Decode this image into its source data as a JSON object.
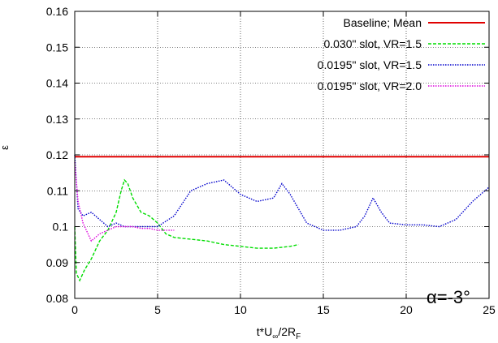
{
  "chart_data": {
    "type": "line",
    "title": "",
    "xlabel": "t*U",
    "xlabel_sub_inf": "∞",
    "xlabel_mid": "/2R",
    "xlabel_sub": "F",
    "ylabel": "ε",
    "xlim": [
      0,
      25
    ],
    "ylim": [
      0.08,
      0.16
    ],
    "xticks": [
      "0",
      "5",
      "10",
      "15",
      "20",
      "25"
    ],
    "xtick_values": [
      0,
      5,
      10,
      15,
      20,
      25
    ],
    "yticks": [
      "0.08",
      "0.09",
      "0.1",
      "0.11",
      "0.12",
      "0.13",
      "0.14",
      "0.15",
      "0.16"
    ],
    "ytick_values": [
      0.08,
      0.09,
      0.1,
      0.11,
      0.12,
      0.13,
      0.14,
      0.15,
      0.16
    ],
    "grid": true,
    "legend_position": "top-right",
    "annotation": "α=-3°",
    "series": [
      {
        "name": "Baseline; Mean",
        "color": "#e00000",
        "style": "solid",
        "x": [
          0,
          25
        ],
        "y": [
          0.1195,
          0.1195
        ]
      },
      {
        "name": "0.030\" slot, VR=1.5",
        "color": "#00dd00",
        "style": "dashed",
        "x": [
          0,
          0.1,
          0.3,
          0.6,
          1.0,
          1.5,
          2.0,
          2.5,
          2.8,
          3.0,
          3.2,
          3.5,
          4.0,
          4.5,
          5.0,
          5.5,
          6.0,
          7.0,
          8.0,
          9.0,
          10.0,
          11.0,
          12.0,
          13.0,
          13.5
        ],
        "y": [
          0.1,
          0.087,
          0.085,
          0.088,
          0.091,
          0.096,
          0.099,
          0.104,
          0.11,
          0.113,
          0.112,
          0.108,
          0.104,
          0.103,
          0.101,
          0.098,
          0.097,
          0.0965,
          0.096,
          0.095,
          0.0945,
          0.094,
          0.094,
          0.0945,
          0.095
        ]
      },
      {
        "name": "0.0195\" slot, VR=1.5",
        "color": "#0000cc",
        "style": "dotted",
        "x": [
          0,
          0.2,
          0.5,
          1.0,
          1.5,
          2.0,
          2.5,
          3.0,
          3.5,
          4.0,
          5.0,
          6.0,
          7.0,
          8.0,
          9.0,
          10.0,
          11.0,
          12.0,
          12.5,
          13.0,
          14.0,
          15.0,
          16.0,
          17.0,
          17.5,
          18.0,
          18.5,
          19.0,
          20.0,
          21.0,
          22.0,
          23.0,
          24.0,
          25.0
        ],
        "y": [
          0.12,
          0.105,
          0.103,
          0.104,
          0.102,
          0.1,
          0.101,
          0.1,
          0.1,
          0.1,
          0.1,
          0.103,
          0.11,
          0.112,
          0.113,
          0.109,
          0.107,
          0.108,
          0.112,
          0.109,
          0.101,
          0.099,
          0.099,
          0.1,
          0.103,
          0.108,
          0.104,
          0.101,
          0.1005,
          0.1005,
          0.1,
          0.102,
          0.107,
          0.111
        ]
      },
      {
        "name": "0.0195\" slot, VR=2.0",
        "color": "#dd00dd",
        "style": "dotted",
        "x": [
          0,
          0.2,
          0.5,
          1.0,
          1.5,
          2.0,
          2.5,
          3.0,
          3.5,
          4.0,
          4.5,
          5.0,
          5.5,
          6.0
        ],
        "y": [
          0.118,
          0.107,
          0.101,
          0.096,
          0.098,
          0.099,
          0.1,
          0.1,
          0.1,
          0.0995,
          0.0995,
          0.099,
          0.099,
          0.099
        ]
      }
    ]
  }
}
